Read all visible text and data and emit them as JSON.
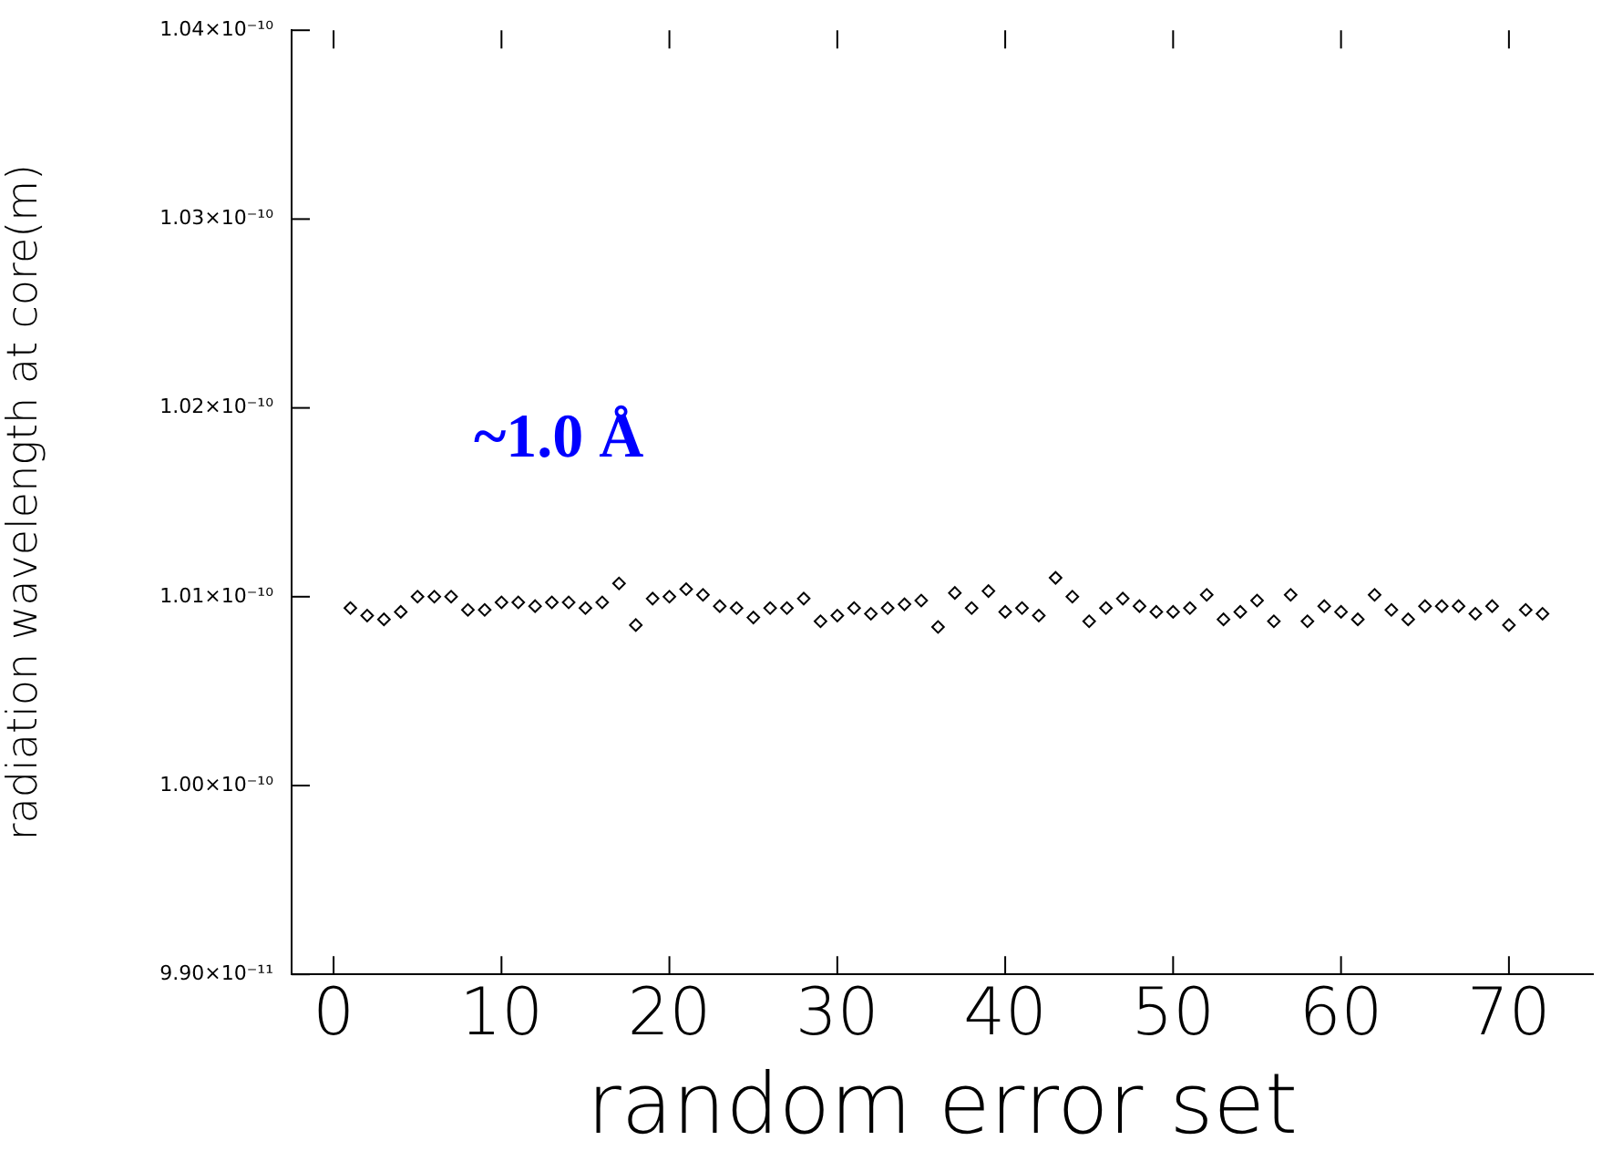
{
  "chart_data": {
    "type": "scatter",
    "xlabel": "random error set",
    "ylabel": "radiation wavelength at core(m)",
    "annotations": [
      "~1.0 Å"
    ],
    "x": [
      1,
      2,
      3,
      4,
      5,
      6,
      7,
      8,
      9,
      10,
      11,
      12,
      13,
      14,
      15,
      16,
      17,
      18,
      19,
      20,
      21,
      22,
      23,
      24,
      25,
      26,
      27,
      28,
      29,
      30,
      31,
      32,
      33,
      34,
      35,
      36,
      37,
      38,
      39,
      40,
      41,
      42,
      43,
      44,
      45,
      46,
      47,
      48,
      49,
      50,
      51,
      52,
      53,
      54,
      55,
      56,
      57,
      58,
      59,
      60,
      61,
      62,
      63,
      64,
      65,
      66,
      67,
      68,
      69,
      70,
      71,
      72
    ],
    "series": [
      {
        "color": "#000000",
        "values": [
          1.0094e-10,
          1.009e-10,
          1.0088e-10,
          1.0092e-10,
          1.01e-10,
          1.01e-10,
          1.01e-10,
          1.0093e-10,
          1.0093e-10,
          1.0097e-10,
          1.0097e-10,
          1.0095e-10,
          1.0097e-10,
          1.0097e-10,
          1.0094e-10,
          1.0097e-10,
          1.0107e-10,
          1.0085e-10,
          1.0099e-10,
          1.01e-10,
          1.0104e-10,
          1.0101e-10,
          1.0095e-10,
          1.0094e-10,
          1.0089e-10,
          1.0094e-10,
          1.0094e-10,
          1.0099e-10,
          1.0087e-10,
          1.009e-10,
          1.0094e-10,
          1.0091e-10,
          1.0094e-10,
          1.0096e-10,
          1.0098e-10,
          1.0084e-10,
          1.0102e-10,
          1.0094e-10,
          1.0103e-10,
          1.0092e-10,
          1.0094e-10,
          1.009e-10,
          1.011e-10,
          1.01e-10,
          1.0087e-10,
          1.0094e-10,
          1.0099e-10,
          1.0095e-10,
          1.0092e-10,
          1.0092e-10,
          1.0094e-10,
          1.0101e-10,
          1.0088e-10,
          1.0092e-10,
          1.0098e-10,
          1.0087e-10,
          1.0101e-10,
          1.0087e-10,
          1.0095e-10,
          1.0092e-10,
          1.0088e-10,
          1.0101e-10,
          1.0093e-10,
          1.0088e-10,
          1.0095e-10,
          1.0095e-10,
          1.0095e-10,
          1.0091e-10,
          1.0095e-10,
          1.0085e-10,
          1.0093e-10,
          1.0091e-10
        ]
      }
    ],
    "xlim": [
      -2.5,
      75
    ],
    "xticks": [
      0,
      10,
      20,
      30,
      40,
      50,
      60,
      70
    ],
    "ylim": [
      9.9e-11,
      1.04e-10
    ],
    "yticks": [
      {
        "value": 9.9e-11,
        "label": "9.90×10⁻¹¹"
      },
      {
        "value": 1e-10,
        "label": "1.00×10⁻¹⁰"
      },
      {
        "value": 1.01e-10,
        "label": "1.01×10⁻¹⁰"
      },
      {
        "value": 1.02e-10,
        "label": "1.02×10⁻¹⁰"
      },
      {
        "value": 1.03e-10,
        "label": "1.03×10⁻¹⁰"
      },
      {
        "value": 1.04e-10,
        "label": "1.04×10⁻¹⁰"
      }
    ],
    "marker": "diamond",
    "grid": false,
    "legend": false
  }
}
